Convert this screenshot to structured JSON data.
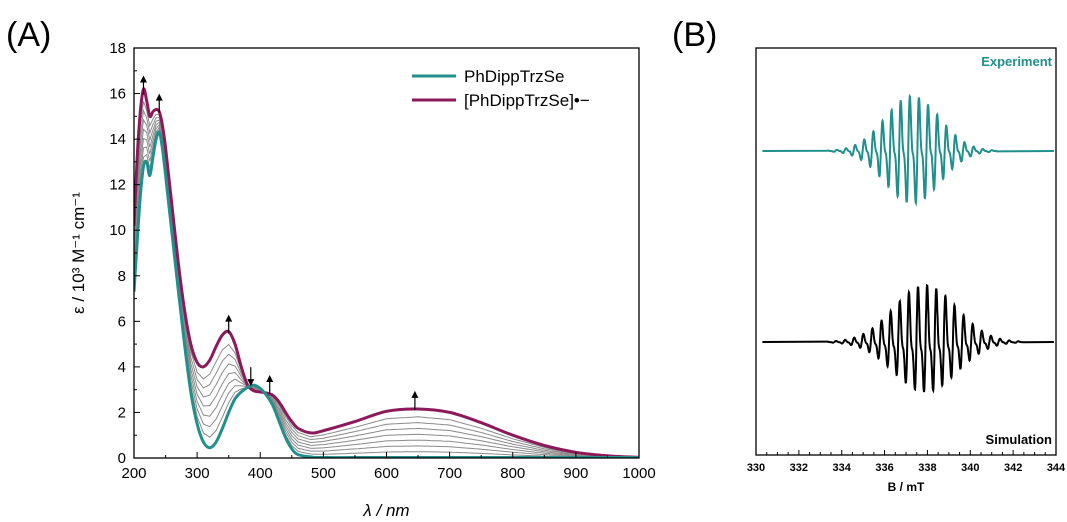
{
  "colors": {
    "teal": "#21908d",
    "magenta": "#8c1a5b",
    "gray": "#8a8a8a",
    "black": "#000000"
  },
  "chart_data": [
    {
      "panel": "(A)",
      "type": "line",
      "xlabel": "λ / nm",
      "ylabel": "ε / 10³ M⁻¹ cm⁻¹",
      "xlim": [
        200,
        1000
      ],
      "ylim": [
        0,
        18
      ],
      "xticks": [
        200,
        300,
        400,
        500,
        600,
        700,
        800,
        900,
        1000
      ],
      "yticks": [
        0,
        2,
        4,
        6,
        8,
        10,
        12,
        14,
        16,
        18
      ],
      "legend_position": "top-right",
      "series": [
        {
          "name": "PhDippTrzSe",
          "color": "#21908d",
          "x": [
            200,
            205,
            210,
            215,
            220,
            225,
            230,
            235,
            240,
            245,
            250,
            260,
            270,
            280,
            290,
            300,
            310,
            320,
            330,
            340,
            350,
            360,
            370,
            380,
            390,
            400,
            410,
            420,
            430,
            440,
            450,
            460,
            480,
            500,
            600,
            800,
            1000
          ],
          "y": [
            7.3,
            9.5,
            11.5,
            12.8,
            13.0,
            12.4,
            13.2,
            14.0,
            14.3,
            13.6,
            12.4,
            9.9,
            7.4,
            5.0,
            2.9,
            1.5,
            0.7,
            0.45,
            0.7,
            1.3,
            2.0,
            2.6,
            2.9,
            3.1,
            3.2,
            3.05,
            2.75,
            2.3,
            1.6,
            0.9,
            0.4,
            0.15,
            0.05,
            0.02,
            0.02,
            0.02,
            0.02
          ]
        },
        {
          "name": "[PhDippTrzSe]•−",
          "color": "#8c1a5b",
          "x": [
            200,
            205,
            210,
            215,
            220,
            225,
            230,
            235,
            240,
            245,
            250,
            260,
            270,
            280,
            290,
            300,
            310,
            320,
            330,
            340,
            350,
            360,
            370,
            380,
            390,
            400,
            410,
            420,
            430,
            440,
            450,
            460,
            480,
            500,
            550,
            600,
            650,
            700,
            750,
            800,
            850,
            900,
            950,
            1000
          ],
          "y": [
            10.2,
            13.2,
            15.2,
            16.2,
            15.7,
            15.0,
            15.2,
            15.3,
            15.2,
            14.6,
            13.6,
            11.1,
            8.6,
            6.5,
            5.0,
            4.2,
            4.0,
            4.3,
            4.9,
            5.4,
            5.55,
            5.0,
            4.0,
            3.2,
            2.95,
            2.9,
            2.85,
            2.75,
            2.45,
            2.0,
            1.6,
            1.3,
            1.1,
            1.2,
            1.6,
            2.05,
            2.15,
            2.0,
            1.55,
            1.0,
            0.55,
            0.25,
            0.1,
            0.03
          ]
        }
      ],
      "arrows": [
        {
          "x": 215,
          "y": 16.4,
          "direction": "up"
        },
        {
          "x": 240,
          "y": 15.6,
          "direction": "up"
        },
        {
          "x": 350,
          "y": 5.9,
          "direction": "up"
        },
        {
          "x": 385,
          "y": 3.55,
          "direction": "down"
        },
        {
          "x": 415,
          "y": 3.25,
          "direction": "up"
        },
        {
          "x": 645,
          "y": 2.55,
          "direction": "up"
        }
      ]
    },
    {
      "panel": "(B)",
      "type": "line",
      "xlabel": "B / mT",
      "xlim": [
        330,
        344
      ],
      "xticks": [
        330,
        332,
        334,
        336,
        338,
        340,
        342,
        344
      ],
      "series": [
        {
          "name": "Experiment",
          "color": "#21908d",
          "center": 337,
          "span": [
            333.3,
            341.3
          ]
        },
        {
          "name": "Simulation",
          "color": "#000000",
          "center": 337,
          "span": [
            333.3,
            342.5
          ]
        }
      ]
    }
  ]
}
